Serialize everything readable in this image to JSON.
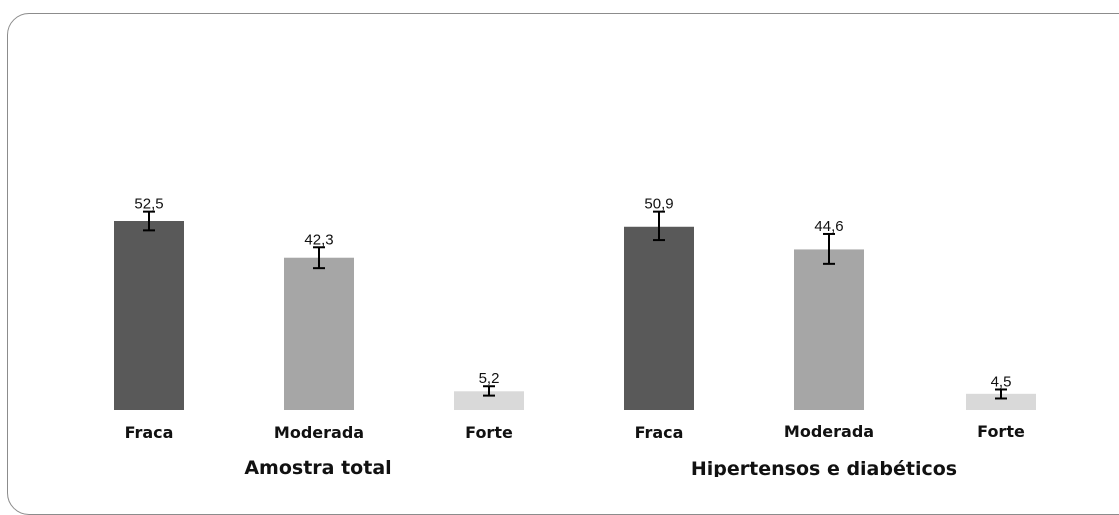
{
  "chart_data": {
    "type": "bar",
    "groups": [
      {
        "label": "Amostra total",
        "bars": [
          {
            "category": "Fraca",
            "value": 52.5,
            "value_label": "52,5",
            "err_low": 49.9,
            "err_high": 55.1,
            "color": "#595959"
          },
          {
            "category": "Moderada",
            "value": 42.3,
            "value_label": "42,3",
            "err_low": 39.4,
            "err_high": 45.2,
            "color": "#a6a6a6"
          },
          {
            "category": "Forte",
            "value": 5.2,
            "value_label": "5,2",
            "err_low": 4.0,
            "err_high": 6.6,
            "color": "#d9d9d9"
          }
        ]
      },
      {
        "label": "Hipertensos e diabéticos",
        "bars": [
          {
            "category": "Fraca",
            "value": 50.9,
            "value_label": "50,9",
            "err_low": 47.2,
            "err_high": 55.1,
            "color": "#595959"
          },
          {
            "category": "Moderada",
            "value": 44.6,
            "value_label": "44,6",
            "err_low": 40.6,
            "err_high": 48.9,
            "color": "#a6a6a6"
          },
          {
            "category": "Forte",
            "value": 4.5,
            "value_label": "4,5",
            "err_low": 3.2,
            "err_high": 5.7,
            "color": "#d9d9d9"
          }
        ]
      }
    ],
    "ylim": [
      0,
      100
    ],
    "grid": false,
    "legend": "none",
    "title": "",
    "xlabel": "",
    "ylabel": ""
  }
}
